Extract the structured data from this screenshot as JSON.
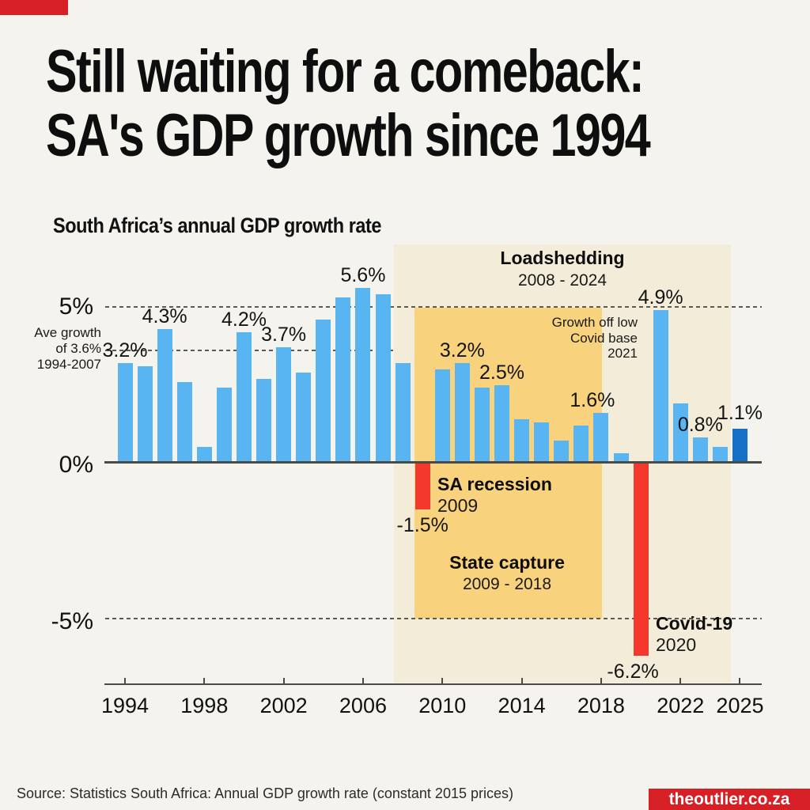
{
  "header": {
    "title_line1": "Still waiting for a comeback:",
    "title_line2": "SA's GDP growth since 1994"
  },
  "footer": {
    "source": "Source: Statistics South Africa: Annual GDP growth rate (constant 2015 prices)",
    "brand": "theoutlier.co.za"
  },
  "chart_data": {
    "type": "bar",
    "title": "South Africa’s annual GDP growth rate",
    "unit": "%",
    "ylim": [
      -7.1,
      7
    ],
    "grid": "horizontal dashed",
    "legend_position": "none",
    "y_ticks": [
      {
        "label": "5%",
        "value": 5
      },
      {
        "label": "0%",
        "value": 0
      },
      {
        "label": "-5%",
        "value": -5
      }
    ],
    "gridline_values": [
      5,
      3.6,
      -5
    ],
    "x_tick_years": [
      1994,
      1998,
      2002,
      2006,
      2010,
      2014,
      2018,
      2022,
      2025
    ],
    "series": [
      {
        "year": 1994,
        "value": 3.2,
        "label": "3.2%"
      },
      {
        "year": 1995,
        "value": 3.1
      },
      {
        "year": 1996,
        "value": 4.3,
        "label": "4.3%"
      },
      {
        "year": 1997,
        "value": 2.6
      },
      {
        "year": 1998,
        "value": 0.5
      },
      {
        "year": 1999,
        "value": 2.4
      },
      {
        "year": 2000,
        "value": 4.2,
        "label": "4.2%"
      },
      {
        "year": 2001,
        "value": 2.7
      },
      {
        "year": 2002,
        "value": 3.7,
        "label": "3.7%"
      },
      {
        "year": 2003,
        "value": 2.9
      },
      {
        "year": 2004,
        "value": 4.6
      },
      {
        "year": 2005,
        "value": 5.3
      },
      {
        "year": 2006,
        "value": 5.6,
        "label": "5.6%"
      },
      {
        "year": 2007,
        "value": 5.4
      },
      {
        "year": 2008,
        "value": 3.2
      },
      {
        "year": 2009,
        "value": -1.5,
        "label": "-1.5%"
      },
      {
        "year": 2010,
        "value": 3.0
      },
      {
        "year": 2011,
        "value": 3.2,
        "label": "3.2%"
      },
      {
        "year": 2012,
        "value": 2.4
      },
      {
        "year": 2013,
        "value": 2.5,
        "label": "2.5%"
      },
      {
        "year": 2014,
        "value": 1.4
      },
      {
        "year": 2015,
        "value": 1.3
      },
      {
        "year": 2016,
        "value": 0.7
      },
      {
        "year": 2017,
        "value": 1.2
      },
      {
        "year": 2018,
        "value": 1.6,
        "label": "1.6%"
      },
      {
        "year": 2019,
        "value": 0.3
      },
      {
        "year": 2020,
        "value": -6.2,
        "label": "-6.2%"
      },
      {
        "year": 2021,
        "value": 4.9,
        "label": "4.9%"
      },
      {
        "year": 2022,
        "value": 1.9
      },
      {
        "year": 2023,
        "value": 0.8,
        "label": "0.8%"
      },
      {
        "year": 2024,
        "value": 0.5
      },
      {
        "year": 2025,
        "value": 1.1,
        "label": "1.1%",
        "dark": true
      }
    ],
    "annotations": [
      {
        "id": "avg-growth",
        "lines": [
          "Ave growth",
          "of 3.6%",
          "1994-2007"
        ],
        "value": 3.6
      },
      {
        "id": "loadshedding",
        "title": "Loadshedding",
        "period": "2008 - 2024"
      },
      {
        "id": "state-capture",
        "title": "State capture",
        "period": "2009 - 2018"
      },
      {
        "id": "sa-recession",
        "title": "SA recession",
        "period": "2009"
      },
      {
        "id": "covid",
        "title": "Covid-19",
        "period": "2020"
      },
      {
        "id": "covid-base",
        "lines": [
          "Growth off low",
          "Covid base",
          "2021"
        ]
      }
    ],
    "colors": {
      "background": "#f4f3ee",
      "bar_positive": "#58b5f2",
      "bar_negative": "#f5382c",
      "bar_dark": "#1571c8",
      "band_loadshedding": "#f3ecd9",
      "band_state_capture": "#f8d27c",
      "accent_red": "#d71f26",
      "axis": "#4a4a46",
      "text": "#121212"
    }
  }
}
